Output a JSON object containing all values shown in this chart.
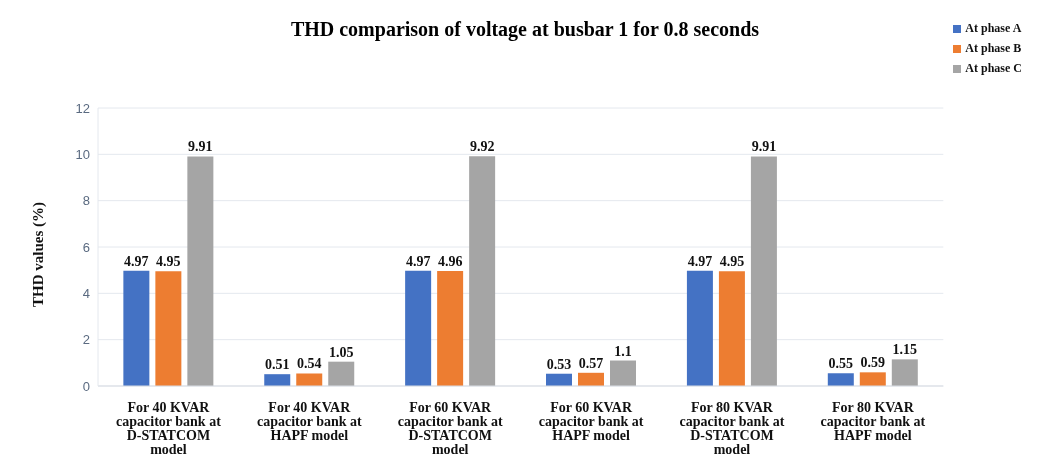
{
  "chart_data": {
    "type": "bar",
    "title": "THD comparison of voltage at busbar 1 for 0.8 seconds",
    "ylabel": "THD values (%)",
    "categories": [
      "For 40 KVAR capacitor bank at D-STATCOM model",
      "For 40 KVAR capacitor bank at HAPF model",
      "For 60 KVAR capacitor bank at D-STATCOM model",
      "For 60 KVAR capacitor bank at HAPF model",
      "For 80 KVAR capacitor bank at D-STATCOM model",
      "For 80 KVAR capacitor bank at HAPF model"
    ],
    "series": [
      {
        "name": "At phase A",
        "color": "#4472c4",
        "values": [
          4.97,
          0.51,
          4.97,
          0.53,
          4.97,
          0.55
        ]
      },
      {
        "name": "At phase B",
        "color": "#ed7d31",
        "values": [
          4.95,
          0.54,
          4.96,
          0.57,
          4.95,
          0.59
        ]
      },
      {
        "name": "At phase C",
        "color": "#a5a5a5",
        "values": [
          9.91,
          1.05,
          9.92,
          1.1,
          9.91,
          1.15
        ]
      }
    ],
    "ylim": [
      0,
      12
    ],
    "yticks": [
      0,
      2,
      4,
      6,
      8,
      10,
      12
    ],
    "grid": "y",
    "legend": "top right",
    "data_labels": true
  }
}
